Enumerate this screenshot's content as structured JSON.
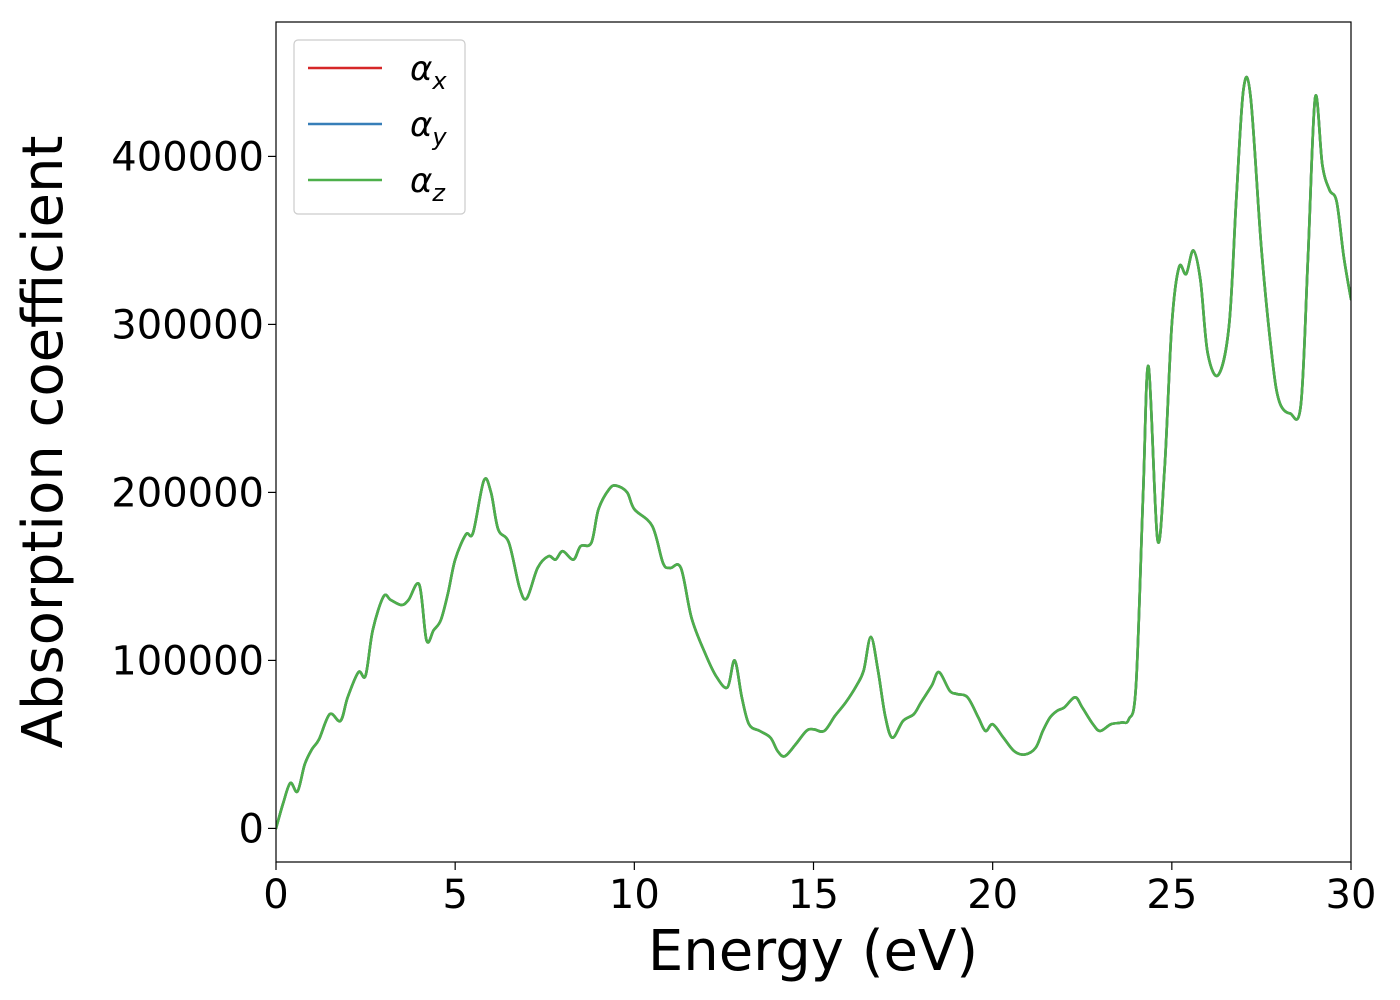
{
  "chart_data": {
    "type": "line",
    "title": "",
    "xlabel": "Energy (eV)",
    "ylabel": "Absorption coefficient",
    "xlim": [
      0,
      30
    ],
    "ylim": [
      -20000,
      480000
    ],
    "xticks": [
      0,
      5,
      10,
      15,
      20,
      25,
      30
    ],
    "xtick_labels": [
      "0",
      "5",
      "10",
      "15",
      "20",
      "25",
      "30"
    ],
    "yticks": [
      0,
      100000,
      200000,
      300000,
      400000
    ],
    "ytick_labels": [
      "0",
      "100000",
      "200000",
      "300000",
      "400000"
    ],
    "grid": false,
    "legend_position": "top-left",
    "x": [
      0,
      0.2,
      0.4,
      0.6,
      0.8,
      1.0,
      1.2,
      1.5,
      1.8,
      2.0,
      2.3,
      2.5,
      2.7,
      3.0,
      3.2,
      3.5,
      3.7,
      4.0,
      4.2,
      4.4,
      4.6,
      4.8,
      5.0,
      5.3,
      5.5,
      5.8,
      6.0,
      6.2,
      6.5,
      6.8,
      7.0,
      7.3,
      7.6,
      7.8,
      8.0,
      8.3,
      8.5,
      8.8,
      9.0,
      9.3,
      9.5,
      9.8,
      10.0,
      10.5,
      10.8,
      11.0,
      11.3,
      11.6,
      12.0,
      12.3,
      12.6,
      12.8,
      13.0,
      13.2,
      13.5,
      13.8,
      14.0,
      14.2,
      14.5,
      14.8,
      15.0,
      15.3,
      15.6,
      15.9,
      16.2,
      16.4,
      16.6,
      16.8,
      17.0,
      17.2,
      17.5,
      17.8,
      18.0,
      18.3,
      18.5,
      18.8,
      19.0,
      19.3,
      19.6,
      19.8,
      20.0,
      20.3,
      20.6,
      20.9,
      21.2,
      21.4,
      21.6,
      21.8,
      22.0,
      22.3,
      22.5,
      22.8,
      23.0,
      23.3,
      23.6,
      23.8,
      24.0,
      24.2,
      24.35,
      24.6,
      24.8,
      25.0,
      25.2,
      25.4,
      25.6,
      25.8,
      26.0,
      26.3,
      26.6,
      26.8,
      27.0,
      27.2,
      27.5,
      27.8,
      28.0,
      28.3,
      28.6,
      28.8,
      29.0,
      29.2,
      29.4,
      29.6,
      29.8,
      30.0
    ],
    "series": [
      {
        "name": "αx",
        "name_base": "α",
        "name_sub": "x",
        "color": "#d62728",
        "values": [
          0,
          15000,
          27000,
          22000,
          38000,
          47000,
          53000,
          68000,
          64000,
          78000,
          93000,
          91000,
          118000,
          138000,
          136000,
          133000,
          136000,
          145000,
          112000,
          118000,
          124000,
          140000,
          160000,
          175000,
          176000,
          207000,
          200000,
          178000,
          170000,
          143000,
          137000,
          155000,
          162000,
          160000,
          165000,
          160000,
          168000,
          170000,
          190000,
          202000,
          204000,
          200000,
          190000,
          180000,
          158000,
          155000,
          155000,
          125000,
          103000,
          90000,
          84000,
          100000,
          78000,
          62000,
          58000,
          54000,
          46000,
          43000,
          50000,
          58000,
          59000,
          58000,
          67000,
          75000,
          85000,
          94000,
          114000,
          94000,
          67000,
          54000,
          64000,
          68000,
          75000,
          85000,
          93000,
          82000,
          80000,
          78000,
          66000,
          58000,
          62000,
          54000,
          46000,
          44000,
          48000,
          58000,
          66000,
          70000,
          72000,
          78000,
          72000,
          62000,
          58000,
          62000,
          63000,
          65000,
          85000,
          200000,
          275000,
          172000,
          215000,
          300000,
          334000,
          330000,
          344000,
          326000,
          283000,
          270000,
          300000,
          375000,
          440000,
          435000,
          345000,
          280000,
          254000,
          247000,
          252000,
          340000,
          435000,
          395000,
          380000,
          373000,
          340000,
          315000
        ]
      },
      {
        "name": "αy",
        "name_base": "α",
        "name_sub": "y",
        "color": "#377eb8",
        "values": [
          0,
          15000,
          27000,
          22000,
          38000,
          47000,
          53000,
          68000,
          64000,
          78000,
          93000,
          91000,
          118000,
          138000,
          136000,
          133000,
          136000,
          145000,
          112000,
          118000,
          124000,
          140000,
          160000,
          175000,
          176000,
          207000,
          200000,
          178000,
          170000,
          143000,
          137000,
          155000,
          162000,
          160000,
          165000,
          160000,
          168000,
          170000,
          190000,
          202000,
          204000,
          200000,
          190000,
          180000,
          158000,
          155000,
          155000,
          125000,
          103000,
          90000,
          84000,
          100000,
          78000,
          62000,
          58000,
          54000,
          46000,
          43000,
          50000,
          58000,
          59000,
          58000,
          67000,
          75000,
          85000,
          94000,
          114000,
          94000,
          67000,
          54000,
          64000,
          68000,
          75000,
          85000,
          93000,
          82000,
          80000,
          78000,
          66000,
          58000,
          62000,
          54000,
          46000,
          44000,
          48000,
          58000,
          66000,
          70000,
          72000,
          78000,
          72000,
          62000,
          58000,
          62000,
          63000,
          65000,
          85000,
          200000,
          275000,
          172000,
          215000,
          300000,
          334000,
          330000,
          344000,
          326000,
          283000,
          270000,
          300000,
          375000,
          440000,
          435000,
          345000,
          280000,
          254000,
          247000,
          252000,
          340000,
          435000,
          395000,
          380000,
          373000,
          340000,
          315000
        ]
      },
      {
        "name": "αz",
        "name_base": "α",
        "name_sub": "z",
        "color": "#4daf4a",
        "values": [
          0,
          15000,
          27000,
          22000,
          38000,
          47000,
          53000,
          68000,
          64000,
          78000,
          93000,
          91000,
          118000,
          138000,
          136000,
          133000,
          136000,
          145000,
          112000,
          118000,
          124000,
          140000,
          160000,
          175000,
          176000,
          207000,
          200000,
          178000,
          170000,
          143000,
          137000,
          155000,
          162000,
          160000,
          165000,
          160000,
          168000,
          170000,
          190000,
          202000,
          204000,
          200000,
          190000,
          180000,
          158000,
          155000,
          155000,
          125000,
          103000,
          90000,
          84000,
          100000,
          78000,
          62000,
          58000,
          54000,
          46000,
          43000,
          50000,
          58000,
          59000,
          58000,
          67000,
          75000,
          85000,
          94000,
          114000,
          94000,
          67000,
          54000,
          64000,
          68000,
          75000,
          85000,
          93000,
          82000,
          80000,
          78000,
          66000,
          58000,
          62000,
          54000,
          46000,
          44000,
          48000,
          58000,
          66000,
          70000,
          72000,
          78000,
          72000,
          62000,
          58000,
          62000,
          63000,
          65000,
          85000,
          200000,
          275000,
          172000,
          215000,
          300000,
          334000,
          330000,
          344000,
          326000,
          283000,
          270000,
          300000,
          375000,
          440000,
          435000,
          345000,
          280000,
          254000,
          247000,
          252000,
          340000,
          435000,
          395000,
          380000,
          373000,
          340000,
          315000
        ]
      }
    ]
  }
}
